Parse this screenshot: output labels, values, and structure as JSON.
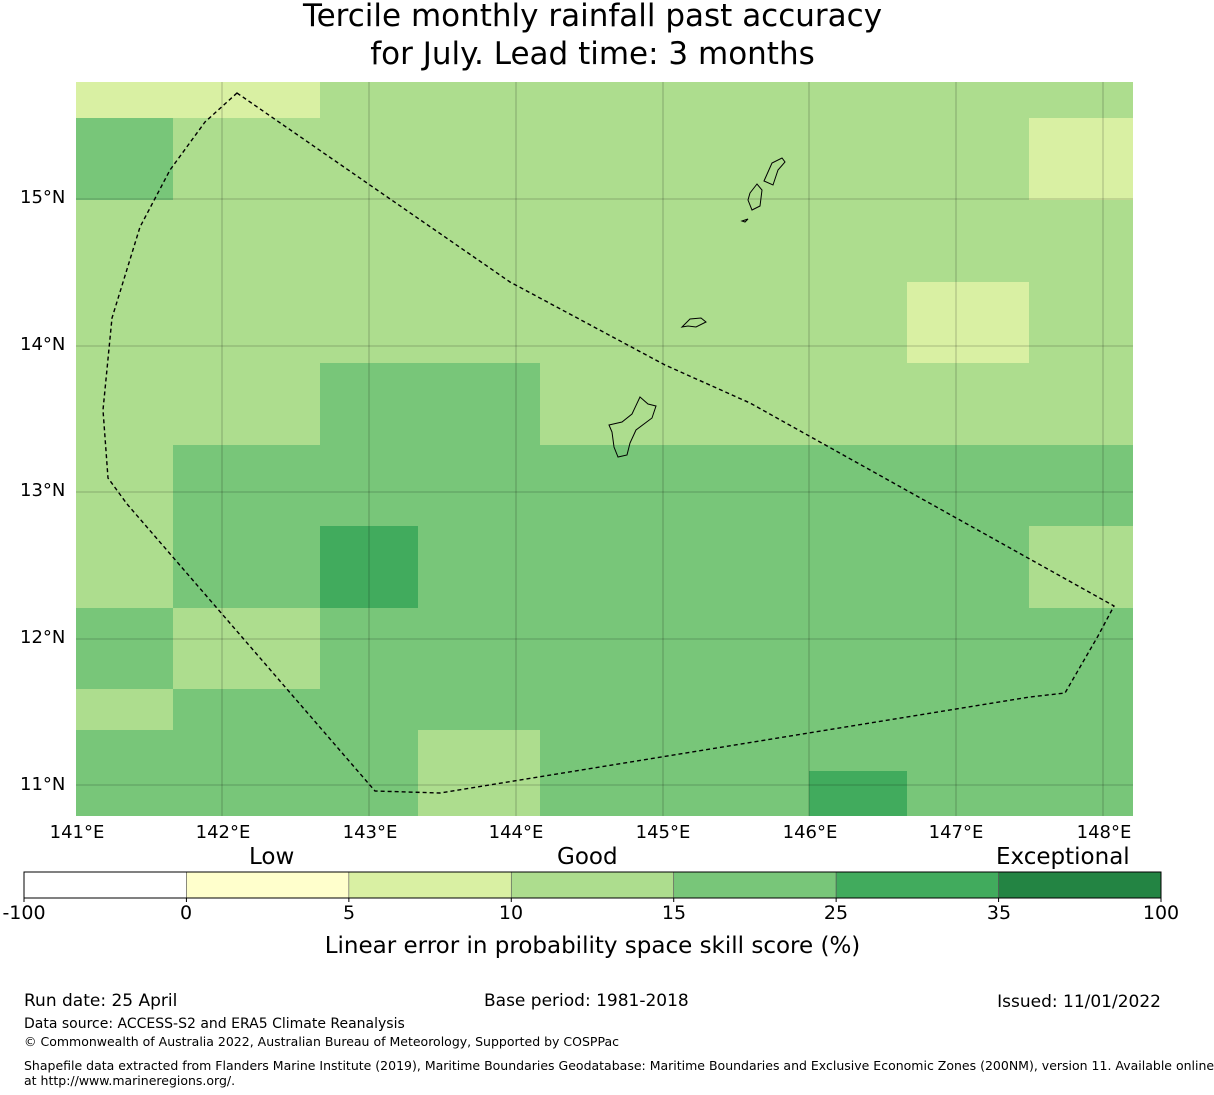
{
  "title": {
    "line1": "Tercile monthly rainfall past accuracy",
    "line2": "for July. Lead time: 3 months"
  },
  "map": {
    "lat_labels": [
      "15°N",
      "14°N",
      "13°N",
      "12°N",
      "11°N"
    ],
    "lon_labels": [
      "141°E",
      "142°E",
      "143°E",
      "144°E",
      "145°E",
      "146°E",
      "147°E",
      "148°E"
    ],
    "colors": {
      "c5_10": "#d9f0a3",
      "c10_15": "#addd8e",
      "c15_25": "#78c679",
      "c25_35": "#41ab5d"
    },
    "grid_rows": [
      [
        "c5_10",
        "c5_10",
        "c5_10",
        "c10_15",
        "c10_15",
        "c10_15",
        "c10_15",
        "c10_15",
        "c10_15",
        "c10_15"
      ],
      [
        "c15_25",
        "c10_15",
        "c10_15",
        "c10_15",
        "c10_15",
        "c10_15",
        "c10_15",
        "c10_15",
        "c10_15",
        "c5_10"
      ],
      [
        "c10_15",
        "c10_15",
        "c10_15",
        "c10_15",
        "c10_15",
        "c10_15",
        "c10_15",
        "c10_15",
        "c10_15",
        "c10_15"
      ],
      [
        "c10_15",
        "c10_15",
        "c10_15",
        "c10_15",
        "c10_15",
        "c10_15",
        "c10_15",
        "c10_15",
        "c5_10",
        "c10_15"
      ],
      [
        "c10_15",
        "c10_15",
        "c10_15",
        "c15_25",
        "c15_25",
        "c10_15",
        "c10_15",
        "c10_15",
        "c10_15",
        "c10_15"
      ],
      [
        "c10_15",
        "c15_25",
        "c15_25",
        "c15_25",
        "c15_25",
        "c15_25",
        "c15_25",
        "c15_25",
        "c15_25",
        "c15_25"
      ],
      [
        "c10_15",
        "c15_25",
        "c15_25",
        "c25_35",
        "c15_25",
        "c15_25",
        "c15_25",
        "c15_25",
        "c15_25",
        "c10_15"
      ],
      [
        "c15_25",
        "c10_15",
        "c10_15",
        "c15_25",
        "c15_25",
        "c15_25",
        "c15_25",
        "c15_25",
        "c15_25",
        "c15_25"
      ],
      [
        "c10_15",
        "c15_25",
        "c15_25",
        "c15_25",
        "c15_25",
        "c15_25",
        "c15_25",
        "c15_25",
        "c15_25",
        "c15_25"
      ],
      [
        "c15_25",
        "c15_25",
        "c15_25",
        "c15_25",
        "c10_15",
        "c15_25",
        "c15_25",
        "c15_25",
        "c15_25",
        "c15_25"
      ],
      [
        "c15_25",
        "c15_25",
        "c15_25",
        "c15_25",
        "c10_15",
        "c15_25",
        "c15_25",
        "c25_35",
        "c15_25",
        "c15_25"
      ]
    ]
  },
  "colorbar": {
    "category_labels": [
      "Low",
      "Good",
      "Exceptional"
    ],
    "ticks": [
      "-100",
      "0",
      "5",
      "10",
      "15",
      "25",
      "35",
      "100"
    ],
    "colors": [
      "#ffffff",
      "#ffffcc",
      "#d9f0a3",
      "#addd8e",
      "#78c679",
      "#41ab5d",
      "#238443"
    ],
    "title": "Linear error in probability space skill score (%)"
  },
  "footer": {
    "run_date": "Run date: 25 April",
    "base_period": "Base period: 1981-2018",
    "issued": "Issued: 11/01/2022",
    "data_source": "Data source: ACCESS-S2 and ERA5 Climate Reanalysis",
    "copyright": "© Commonwealth of Australia 2022, Australian Bureau of Meteorology, Supported by COSPPac",
    "shapefile_line1": "Shapefile data extracted from Flanders Marine Institute (2019), Maritime Boundaries Geodatabase: Maritime Boundaries and Exclusive Economic Zones (200NM), version 11. Available online",
    "shapefile_line2": "at http://www.marineregions.org/."
  }
}
